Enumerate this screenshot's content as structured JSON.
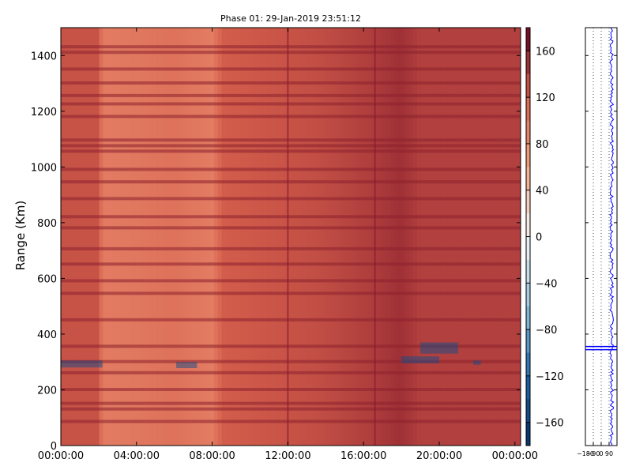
{
  "chart_data": [
    {
      "type": "heatmap",
      "title": "Phase 01: 29-Jan-2019 23:51:12",
      "xlabel": "",
      "ylabel": "Range (Km)",
      "x_ticks": [
        "00:00:00",
        "04:00:00",
        "08:00:00",
        "12:00:00",
        "16:00:00",
        "20:00:00",
        "00:00:00"
      ],
      "x_range_hours": [
        0,
        24.3
      ],
      "y_ticks": [
        0,
        200,
        400,
        600,
        800,
        1000,
        1200,
        1400
      ],
      "ylim": [
        0,
        1500
      ],
      "colorbar": {
        "ticks": [
          160,
          120,
          80,
          40,
          0,
          -40,
          -80,
          -120,
          -160
        ],
        "range": [
          -180,
          180
        ],
        "colormap": "RdBu_r"
      },
      "phase_profile_by_time": [
        {
          "t": 0.0,
          "v": 128
        },
        {
          "t": 2.0,
          "v": 128
        },
        {
          "t": 2.2,
          "v": 96
        },
        {
          "t": 6.0,
          "v": 104
        },
        {
          "t": 8.0,
          "v": 96
        },
        {
          "t": 8.6,
          "v": 122
        },
        {
          "t": 11.0,
          "v": 126
        },
        {
          "t": 14.0,
          "v": 132
        },
        {
          "t": 16.5,
          "v": 142
        },
        {
          "t": 18.0,
          "v": 150
        },
        {
          "t": 19.0,
          "v": 140
        },
        {
          "t": 24.3,
          "v": 140
        }
      ],
      "dark_range_bands_km": [
        85,
        130,
        150,
        200,
        260,
        300,
        355,
        450,
        545,
        590,
        650,
        705,
        780,
        820,
        885,
        945,
        990,
        1055,
        1075,
        1095,
        1180,
        1225,
        1255,
        1300,
        1350,
        1410,
        1430
      ],
      "blue_patches": [
        {
          "t0": 0.0,
          "t1": 2.2,
          "r0": 280,
          "r1": 305
        },
        {
          "t0": 6.1,
          "t1": 7.2,
          "r0": 278,
          "r1": 300
        },
        {
          "t0": 18.0,
          "t1": 20.0,
          "r0": 295,
          "r1": 320
        },
        {
          "t0": 19.0,
          "t1": 21.0,
          "r0": 330,
          "r1": 370
        },
        {
          "t0": 21.8,
          "t1": 22.2,
          "r0": 290,
          "r1": 305
        }
      ]
    },
    {
      "type": "line",
      "x_ticks": [
        -180,
        -90,
        0,
        90
      ],
      "xlim": [
        -180,
        180
      ],
      "ylim": [
        0,
        1500
      ],
      "series_color": "#0000ff",
      "profile_center": 120,
      "profile_spread": 20,
      "marker_range_km": 350
    }
  ]
}
